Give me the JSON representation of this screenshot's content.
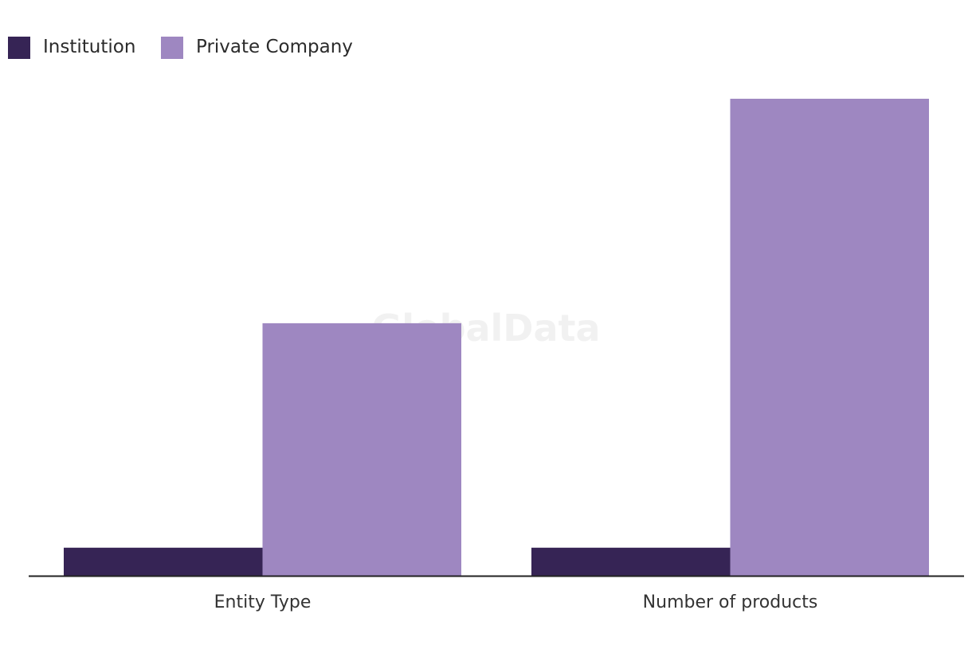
{
  "watermark": "GlobalData",
  "chart_data": {
    "type": "bar",
    "categories": [
      "Entity Type",
      "Number of products"
    ],
    "series": [
      {
        "name": "Institution",
        "color": "#362455",
        "values": [
          1,
          1
        ]
      },
      {
        "name": "Private Company",
        "color": "#9e87c1",
        "values": [
          9,
          17
        ]
      }
    ],
    "ylim": [
      0,
      17
    ],
    "grid": false,
    "legend": "top-left",
    "xlabel": "",
    "ylabel": ""
  }
}
